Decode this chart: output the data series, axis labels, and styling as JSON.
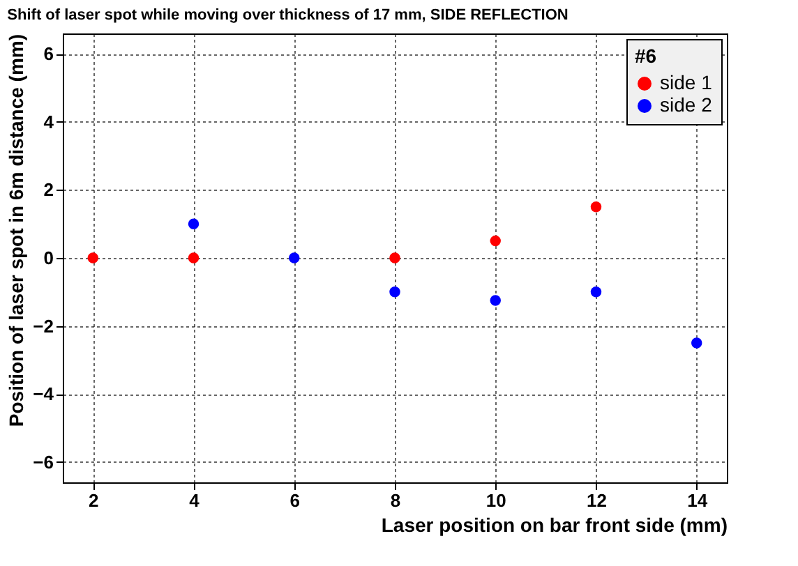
{
  "chart_data": {
    "type": "scatter",
    "title": "Shift of laser spot while moving over thickness of 17 mm, SIDE REFLECTION",
    "xlabel": "Laser position on bar front side   (mm)",
    "ylabel": "Position of laser spot in 6m distance   (mm)",
    "legend_title": "#6",
    "series": [
      {
        "name": "side 1",
        "color": "#ff0000",
        "x": [
          2,
          4,
          8,
          10,
          12
        ],
        "values": [
          0,
          0,
          0,
          0.5,
          1.5
        ]
      },
      {
        "name": "side 2",
        "color": "#0000ff",
        "x": [
          4,
          6,
          8,
          10,
          12,
          14
        ],
        "values": [
          1,
          0,
          -1,
          -1.25,
          -1,
          -2.5
        ]
      }
    ],
    "xlim": [
      1.4,
      14.6
    ],
    "xticks": [
      2,
      4,
      6,
      8,
      10,
      12,
      14
    ],
    "ylim": [
      -6.6,
      6.6
    ],
    "yticks": [
      -6,
      -4,
      -2,
      0,
      2,
      4,
      6
    ],
    "grid": true,
    "legend": "top right",
    "marker": "circle"
  }
}
